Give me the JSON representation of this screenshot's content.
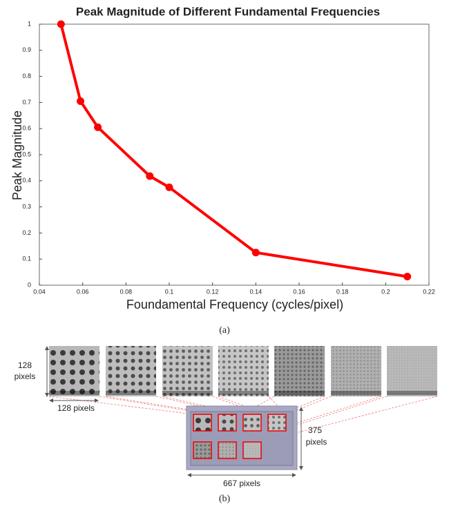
{
  "chart_data": {
    "type": "line",
    "title": "Peak Magnitude of Different Fundamental Frequencies",
    "x_label": "Foundamental Frequency (cycles/pixel)",
    "y_label": "Peak Magnitude",
    "x": [
      0.05,
      0.059,
      0.067,
      0.091,
      0.1,
      0.14,
      0.21
    ],
    "series": [
      {
        "color": "#ff0000",
        "values": [
          1,
          0.705,
          0.605,
          0.418,
          0.375,
          0.125,
          0.033
        ]
      }
    ],
    "xlim": [
      0.04,
      0.22
    ],
    "xticks": [
      0.04,
      0.06,
      0.08,
      0.1,
      0.12,
      0.14,
      0.16,
      0.18,
      0.2,
      0.22
    ],
    "ylim": [
      0,
      1
    ],
    "yticks": [
      0,
      0.1,
      0.2,
      0.3,
      0.4,
      0.5,
      0.6,
      0.7,
      0.8,
      0.9,
      1
    ],
    "grid": false
  },
  "captions": [
    "(a)",
    "(b)"
  ],
  "diagram": {
    "tile_height_label": [
      "128",
      "pixels"
    ],
    "tile_width_label": "128 pixels",
    "image_height_label": [
      "375",
      "pixels"
    ],
    "image_width_label": "667 pixels"
  }
}
